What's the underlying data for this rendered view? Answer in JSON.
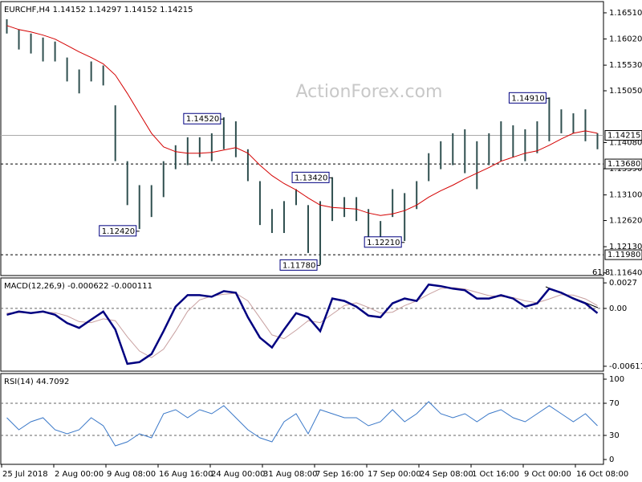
{
  "chart_data": [
    {
      "type": "ohlc",
      "title": "EURCHF,H4 1.14152 1.14297 1.14152 1.14215",
      "watermark": "ActionForex.com",
      "color": "#2f4f4f",
      "high": [
        1.1639,
        1.16196,
        1.16122,
        1.16047,
        1.15972,
        1.15673,
        1.15449,
        1.15599,
        1.15524,
        1.14777,
        1.13731,
        1.13283,
        1.13283,
        1.13731,
        1.1403,
        1.14179,
        1.14179,
        1.14254,
        1.14553,
        1.14478,
        1.13955,
        1.13358,
        1.12835,
        1.12984,
        1.13208,
        1.12909,
        1.12984,
        1.13432,
        1.13059,
        1.13059,
        1.12835,
        1.12611,
        1.13208,
        1.13134,
        1.13358,
        1.13881,
        1.14105,
        1.14254,
        1.14329,
        1.14105,
        1.14254,
        1.14478,
        1.14403,
        1.14329,
        1.14478,
        1.14926,
        1.14702,
        1.14628,
        1.14702,
        1.14254
      ],
      "low": [
        1.16122,
        1.15823,
        1.15748,
        1.15599,
        1.15599,
        1.15225,
        1.15001,
        1.15225,
        1.1515,
        1.13731,
        1.12909,
        1.12461,
        1.12686,
        1.13059,
        1.13582,
        1.13657,
        1.13806,
        1.13731,
        1.13955,
        1.13806,
        1.13358,
        1.12536,
        1.12387,
        1.12387,
        1.12909,
        1.12013,
        1.11789,
        1.12611,
        1.12686,
        1.12611,
        1.12237,
        1.12237,
        1.12686,
        1.12237,
        1.12835,
        1.13358,
        1.13582,
        1.13657,
        1.13507,
        1.13208,
        1.13657,
        1.13731,
        1.13806,
        1.13731,
        1.13881,
        1.14105,
        1.14254,
        1.14254,
        1.14105,
        1.13955
      ],
      "ma": {
        "color": "#d40000",
        "values": [
          1.16271,
          1.16196,
          1.16151,
          1.16092,
          1.16017,
          1.15898,
          1.15778,
          1.15673,
          1.15554,
          1.15345,
          1.15001,
          1.14628,
          1.14254,
          1.14,
          1.1391,
          1.13881,
          1.13881,
          1.13896,
          1.1394,
          1.13985,
          1.13881,
          1.13657,
          1.13462,
          1.13313,
          1.13193,
          1.13044,
          1.12909,
          1.12865,
          1.1285,
          1.12835,
          1.1276,
          1.12715,
          1.12745,
          1.12805,
          1.12909,
          1.13059,
          1.13178,
          1.13283,
          1.13402,
          1.13507,
          1.13612,
          1.13731,
          1.13806,
          1.13881,
          1.13925,
          1.1403,
          1.14149,
          1.14254,
          1.14299,
          1.14254
        ]
      },
      "ylim": [
        1.1159,
        1.1672
      ],
      "yticks": [
        {
          "value": 1.1651,
          "label": "1.16510"
        },
        {
          "value": 1.1602,
          "label": "1.16020"
        },
        {
          "value": 1.1553,
          "label": "1.15530"
        },
        {
          "value": 1.1505,
          "label": "1.15050"
        },
        {
          "value": 1.1408,
          "label": "1.14080"
        },
        {
          "value": 1.1359,
          "label": "1.13590"
        },
        {
          "value": 1.131,
          "label": "1.13100"
        },
        {
          "value": 1.1262,
          "label": "1.12620"
        },
        {
          "value": 1.1213,
          "label": "1.12130"
        },
        {
          "value": 1.1164,
          "label": "1.11640"
        }
      ],
      "price_line": {
        "value": 1.14215,
        "label": "1.14215"
      },
      "levels": [
        {
          "value": 1.1368,
          "label": "1.13680"
        },
        {
          "value": 1.1198,
          "label": "1.11980"
        }
      ],
      "annotations": [
        {
          "index": 11,
          "value": 1.1242,
          "label": "1.12420"
        },
        {
          "index": 18,
          "value": 1.1452,
          "label": "1.14520"
        },
        {
          "index": 26,
          "value": 1.1178,
          "label": "1.11780"
        },
        {
          "index": 27,
          "value": 1.1342,
          "label": "1.13420"
        },
        {
          "index": 33,
          "value": 1.1221,
          "label": "1.12210"
        },
        {
          "index": 45,
          "value": 1.1491,
          "label": "1.14910"
        }
      ],
      "fib_label": "61.8"
    },
    {
      "type": "macd",
      "title": "MACD(12,26,9) -0.000622 -0.000111",
      "macd": {
        "color": "#000080",
        "values": [
          -0.00067,
          -0.00033,
          -0.0005,
          -0.00033,
          -0.00067,
          -0.00154,
          -0.00206,
          -0.00119,
          -0.00033,
          -0.00223,
          -0.00586,
          -0.00568,
          -0.00482,
          -0.0024,
          0.00019,
          0.0014,
          0.0014,
          0.00123,
          0.00183,
          0.00166,
          -0.00093,
          -0.00309,
          -0.00413,
          -0.00223,
          -0.0005,
          -0.00093,
          -0.0024,
          0.00105,
          0.00079,
          0.00019,
          -0.00076,
          -0.00093,
          0.00054,
          0.00105,
          0.00079,
          0.00252,
          0.00235,
          0.00209,
          0.00192,
          0.00105,
          0.00105,
          0.0014,
          0.00105,
          0.00019,
          0.00054,
          0.00209,
          0.00166,
          0.00105,
          0.00054,
          -0.0005
        ]
      },
      "signal": {
        "color": "#c8a0a0",
        "values": [
          -0.0005,
          -0.00045,
          -0.00045,
          -0.0004,
          -0.00045,
          -0.0008,
          -0.0014,
          -0.0015,
          -0.0011,
          -0.0013,
          -0.003,
          -0.0045,
          -0.0052,
          -0.0043,
          -0.0024,
          -0.0003,
          0.0009,
          0.0013,
          0.0015,
          0.0016,
          0.0008,
          -0.001,
          -0.0028,
          -0.0032,
          -0.0023,
          -0.0013,
          -0.0015,
          -0.0006,
          0.0003,
          0.0006,
          0.0001,
          -0.0005,
          -0.0004,
          0.0003,
          0.0008,
          0.0015,
          0.0021,
          0.0022,
          0.00205,
          0.0017,
          0.00135,
          0.00125,
          0.00115,
          0.0008,
          0.0006,
          0.001,
          0.00145,
          0.0014,
          0.001,
          0.0003
        ]
      },
      "ylim": [
        -0.00663,
        0.00322
      ],
      "yticks": [
        0.0027,
        {
          "value": 0,
          "label": "0.00"
        },
        -0.006114
      ],
      "levels": [
        0
      ]
    },
    {
      "type": "rsi",
      "title": "RSI(14) 44.7092",
      "color": "#3a78c8",
      "values": [
        52,
        37,
        47,
        52,
        37,
        32,
        37,
        52,
        42,
        17,
        22,
        32,
        27,
        57,
        62,
        52,
        62,
        57,
        67,
        52,
        37,
        27,
        22,
        47,
        57,
        32,
        62,
        57,
        52,
        52,
        42,
        47,
        62,
        47,
        57,
        72,
        57,
        52,
        57,
        47,
        57,
        62,
        52,
        47,
        57,
        67,
        57,
        47,
        57,
        42
      ],
      "ylim": [
        -6,
        107
      ],
      "yticks": [
        100,
        70,
        30,
        0
      ],
      "levels": [
        70,
        30
      ],
      "x_labels": [
        "25 Jul 2018",
        "2 Aug 00:00",
        "9 Aug 08:00",
        "16 Aug 16:00",
        "24 Aug 00:00",
        "31 Aug 08:00",
        "7 Sep 16:00",
        "17 Sep 00:00",
        "24 Sep 08:00",
        "1 Oct 16:00",
        "9 Oct 00:00",
        "16 Oct 08:00"
      ]
    }
  ]
}
